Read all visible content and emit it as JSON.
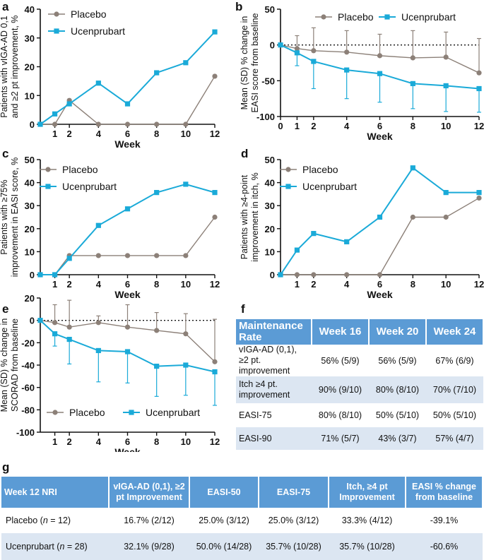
{
  "colors": {
    "placebo": "#8c8078",
    "ucenprubart": "#1aaad8",
    "header": "#5b9bd5",
    "band": "#dce6f2"
  },
  "panels": {
    "a": "a",
    "b": "b",
    "c": "c",
    "d": "d",
    "e": "e",
    "f": "f",
    "g": "g"
  },
  "chart_data": [
    {
      "id": "a",
      "type": "line",
      "ylabel_lines": [
        "Patients with vIGA-AD 0,1",
        "and ≥2 pt improvement, %"
      ],
      "xlabel": "Week",
      "ylim": [
        0,
        40
      ],
      "yticks": [
        0,
        10,
        20,
        30,
        40
      ],
      "xticks": [
        1,
        2,
        4,
        6,
        8,
        10,
        12
      ],
      "xlim": [
        0,
        12
      ],
      "legend": "top-left",
      "series": [
        {
          "name": "Placebo",
          "x": [
            0,
            1,
            2,
            4,
            6,
            8,
            10,
            12
          ],
          "values": [
            0,
            0,
            8.3,
            0,
            0,
            0,
            0,
            16.7
          ]
        },
        {
          "name": "Ucenprubart",
          "x": [
            0,
            1,
            2,
            4,
            6,
            8,
            10,
            12
          ],
          "values": [
            0,
            3.6,
            7.1,
            14.3,
            7.1,
            17.9,
            21.4,
            32.1
          ]
        }
      ]
    },
    {
      "id": "b",
      "type": "line",
      "ylabel_lines": [
        "Mean (SD) % change in",
        "EASI score from baseline"
      ],
      "xlabel": "Week",
      "ylim": [
        -100,
        50
      ],
      "yticks": [
        -100,
        -50,
        0,
        50
      ],
      "xticks": [
        0,
        1,
        2,
        4,
        6,
        8,
        10,
        12
      ],
      "xlim": [
        0,
        12
      ],
      "legend": "top-right",
      "zero_line": true,
      "series": [
        {
          "name": "Placebo",
          "x": [
            0,
            1,
            2,
            4,
            6,
            8,
            10,
            12
          ],
          "values": [
            0,
            -5,
            -8,
            -10,
            -15,
            -18,
            -17,
            -39
          ],
          "sd": [
            0,
            18,
            32,
            30,
            30,
            38,
            35,
            48
          ]
        },
        {
          "name": "Ucenprubart",
          "x": [
            0,
            1,
            2,
            4,
            6,
            8,
            10,
            12
          ],
          "values": [
            0,
            -11,
            -23,
            -35,
            -40,
            -54,
            -57,
            -61
          ],
          "sd": [
            0,
            18,
            38,
            40,
            40,
            35,
            36,
            33
          ]
        }
      ]
    },
    {
      "id": "c",
      "type": "line",
      "ylabel_lines": [
        "Patients with ≥75%",
        "improvement in EASI score, %"
      ],
      "xlabel": "Week",
      "ylim": [
        0,
        50
      ],
      "yticks": [
        0,
        10,
        20,
        30,
        40,
        50
      ],
      "xticks": [
        1,
        2,
        4,
        6,
        8,
        10,
        12
      ],
      "xlim": [
        0,
        12
      ],
      "legend": "top-left",
      "series": [
        {
          "name": "Placebo",
          "x": [
            0,
            1,
            2,
            4,
            6,
            8,
            10,
            12
          ],
          "values": [
            0,
            0,
            8.3,
            8.3,
            8.3,
            8.3,
            8.3,
            25
          ]
        },
        {
          "name": "Ucenprubart",
          "x": [
            0,
            1,
            2,
            4,
            6,
            8,
            10,
            12
          ],
          "values": [
            0,
            0,
            7.1,
            21.4,
            28.6,
            35.7,
            39.3,
            35.7
          ]
        }
      ]
    },
    {
      "id": "d",
      "type": "line",
      "ylabel_lines": [
        "Patients with ≥4-point",
        "improvement in itch, %"
      ],
      "xlabel": "Week",
      "ylim": [
        0,
        50
      ],
      "yticks": [
        0,
        10,
        20,
        30,
        40,
        50
      ],
      "xticks": [
        1,
        2,
        4,
        6,
        8,
        10,
        12
      ],
      "xlim": [
        0,
        12
      ],
      "legend": "top-left",
      "series": [
        {
          "name": "Placebo",
          "x": [
            0,
            1,
            2,
            4,
            6,
            8,
            10,
            12
          ],
          "values": [
            0,
            0,
            0,
            0,
            0,
            25,
            25,
            33.3
          ]
        },
        {
          "name": "Ucenprubart",
          "x": [
            0,
            1,
            2,
            4,
            6,
            8,
            10,
            12
          ],
          "values": [
            0,
            10.7,
            17.9,
            14.3,
            25,
            46.4,
            35.7,
            35.7
          ]
        }
      ]
    },
    {
      "id": "e",
      "type": "line",
      "ylabel_lines": [
        "Mean (SD) % change in",
        "SCORAD from baseline"
      ],
      "xlabel": "Week",
      "ylim": [
        -100,
        20
      ],
      "yticks": [
        -100,
        -80,
        -60,
        -40,
        -20,
        0,
        20
      ],
      "xticks": [
        1,
        2,
        4,
        6,
        8,
        10,
        12
      ],
      "xlim": [
        0,
        12
      ],
      "legend": "bottom-center",
      "zero_line": true,
      "series": [
        {
          "name": "Placebo",
          "x": [
            0,
            1,
            2,
            4,
            6,
            8,
            10,
            12
          ],
          "values": [
            0,
            -2,
            -6,
            -2,
            -6,
            -9,
            -12,
            -37
          ],
          "sd": [
            0,
            16,
            24,
            6,
            20,
            16,
            18,
            38
          ]
        },
        {
          "name": "Ucenprubart",
          "x": [
            0,
            1,
            2,
            4,
            6,
            8,
            10,
            12
          ],
          "values": [
            0,
            -12,
            -17,
            -27,
            -28,
            -41,
            -40,
            -46
          ],
          "sd": [
            0,
            11,
            22,
            28,
            28,
            27,
            27,
            30
          ]
        }
      ]
    }
  ],
  "table_f": {
    "header": [
      "Maintenance Rate",
      "Week 16",
      "Week 20",
      "Week 24"
    ],
    "rows": [
      {
        "label": "vIGA-AD (0,1), ≥2 pt. improvement",
        "values": [
          "56% (5/9)",
          "56% (5/9)",
          "67% (6/9)"
        ]
      },
      {
        "label": "Itch ≥4 pt. improvement",
        "values": [
          "90% (9/10)",
          "80% (8/10)",
          "70% (7/10)"
        ]
      },
      {
        "label": "EASI-75",
        "values": [
          "80% (8/10)",
          "50% (5/10)",
          "50% (5/10)"
        ]
      },
      {
        "label": "EASI-90",
        "values": [
          "71% (5/7)",
          "43% (3/7)",
          "57% (4/7)"
        ]
      }
    ]
  },
  "table_g": {
    "header": [
      "Week 12 NRI",
      "vIGA-AD (0,1), ≥2 pt Improvement",
      "EASI-50",
      "EASI-75",
      "Itch, ≥4 pt Improvement",
      "EASI % change from baseline"
    ],
    "rows": [
      {
        "label": "Placebo (",
        "n": "n",
        "label_suffix": " = 12)",
        "values": [
          "16.7% (2/12)",
          "25.0% (3/12)",
          "25.0% (3/12)",
          "33.3% (4/12)",
          "-39.1%"
        ]
      },
      {
        "label": "Ucenprubart (",
        "n": "n",
        "label_suffix": " = 28)",
        "values": [
          "32.1% (9/28)",
          "50.0% (14/28)",
          "35.7% (10/28)",
          "35.7% (10/28)",
          "-60.6%"
        ]
      }
    ]
  }
}
